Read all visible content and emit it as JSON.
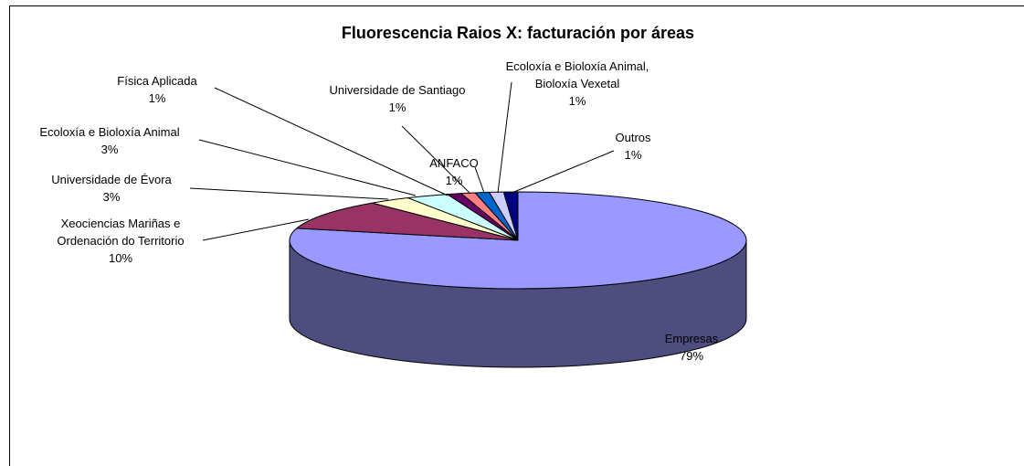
{
  "chart_data": {
    "type": "pie3d",
    "title": "Fluorescencia Raios X: facturación por áreas",
    "categories": [
      "Empresas",
      "Xeociencias Mariñas e Ordenación do Territorio",
      "Universidade de Évora",
      "Ecoloxía e Bioloxía Animal",
      "Física Aplicada",
      "Universidade de Santiago",
      "ANFACO",
      "Ecoloxía e Bioloxía Animal, Bioloxía Vexetal",
      "Outros"
    ],
    "values": [
      79,
      10,
      3,
      3,
      1,
      1,
      1,
      1,
      1
    ],
    "value_labels": [
      "79%",
      "10%",
      "3%",
      "3%",
      "1%",
      "1%",
      "1%",
      "1%",
      "1%"
    ],
    "colors": [
      "#9999ff",
      "#993366",
      "#ffffcc",
      "#ccffff",
      "#660066",
      "#ff8080",
      "#0066cc",
      "#ccccff",
      "#000080"
    ]
  }
}
